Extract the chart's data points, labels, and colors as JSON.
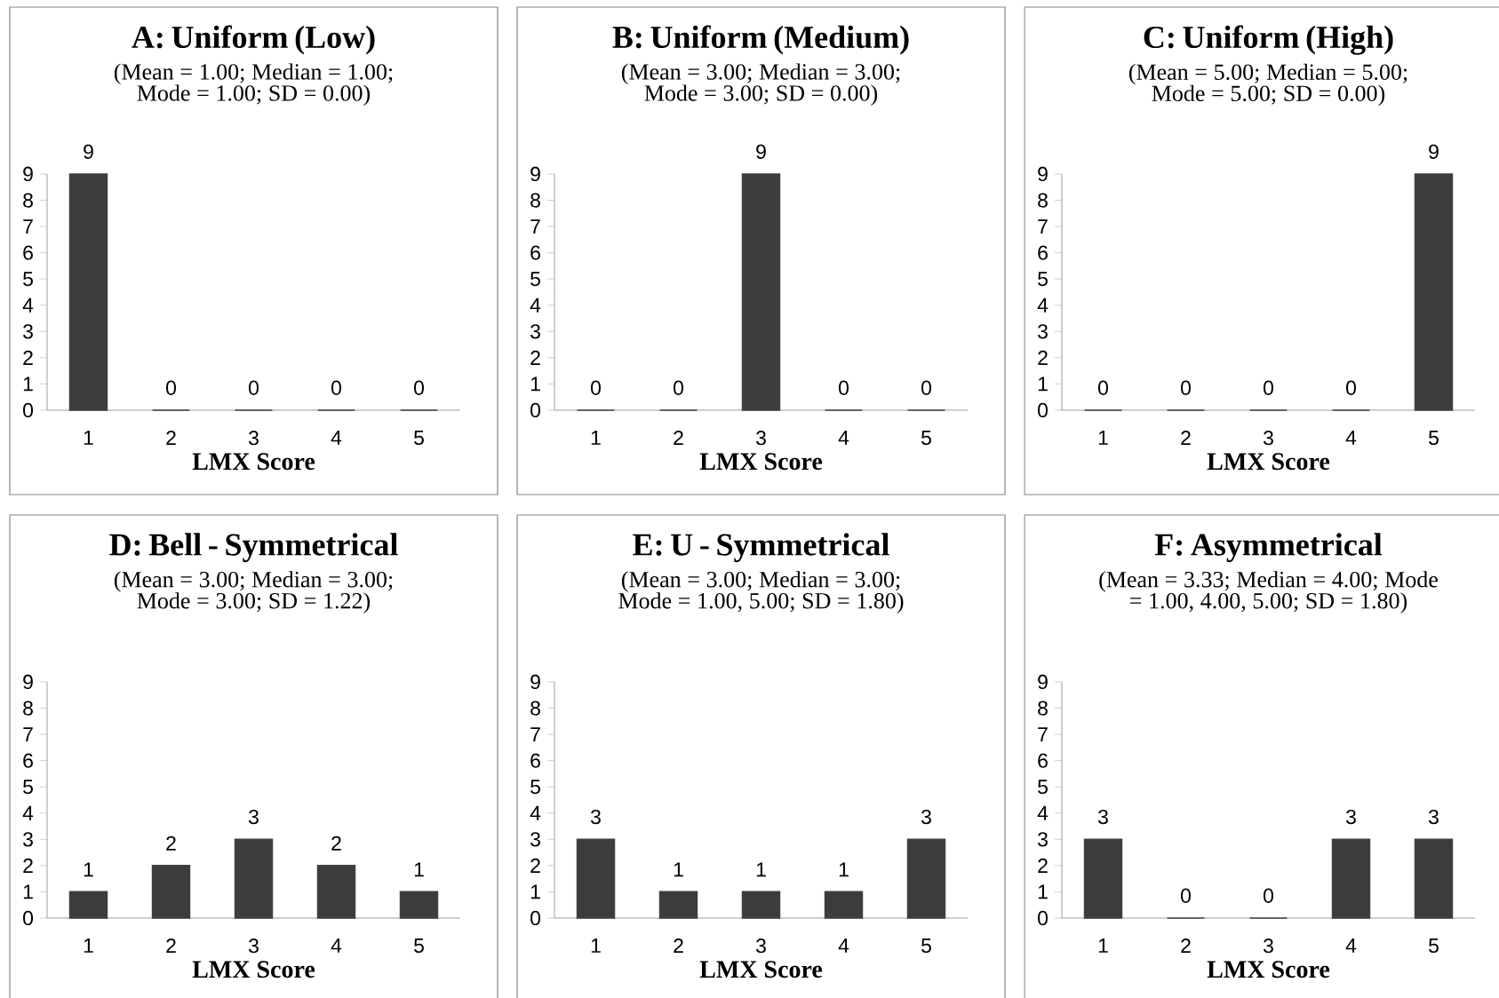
{
  "chart_data": [
    {
      "type": "bar",
      "title": "A: Uniform (Low)",
      "subtitle": "(Mean = 1.00; Median = 1.00; Mode = 1.00; SD = 0.00)",
      "xlabel": "LMX Score",
      "categories": [
        "1",
        "2",
        "3",
        "4",
        "5"
      ],
      "values": [
        9,
        0,
        0,
        0,
        0
      ],
      "color": "#3c3c3c",
      "ylim": [
        0,
        9
      ],
      "yticks": [
        0,
        1,
        2,
        3,
        4,
        5,
        6,
        7,
        8,
        9
      ],
      "data_labels": true
    },
    {
      "type": "bar",
      "title": "B: Uniform (Medium)",
      "subtitle": "(Mean = 3.00; Median = 3.00; Mode = 3.00; SD = 0.00)",
      "xlabel": "LMX Score",
      "categories": [
        "1",
        "2",
        "3",
        "4",
        "5"
      ],
      "values": [
        0,
        0,
        9,
        0,
        0
      ],
      "color": "#3c3c3c",
      "ylim": [
        0,
        9
      ],
      "yticks": [
        0,
        1,
        2,
        3,
        4,
        5,
        6,
        7,
        8,
        9
      ],
      "data_labels": true
    },
    {
      "type": "bar",
      "title": "C: Uniform (High)",
      "subtitle": "(Mean = 5.00; Median = 5.00; Mode = 5.00; SD = 0.00)",
      "xlabel": "LMX Score",
      "categories": [
        "1",
        "2",
        "3",
        "4",
        "5"
      ],
      "values": [
        0,
        0,
        0,
        0,
        9
      ],
      "color": "#3c3c3c",
      "ylim": [
        0,
        9
      ],
      "yticks": [
        0,
        1,
        2,
        3,
        4,
        5,
        6,
        7,
        8,
        9
      ],
      "data_labels": true
    },
    {
      "type": "bar",
      "title": "D: Bell - Symmetrical",
      "subtitle": "(Mean = 3.00; Median = 3.00; Mode = 3.00; SD = 1.22)",
      "xlabel": "LMX Score",
      "categories": [
        "1",
        "2",
        "3",
        "4",
        "5"
      ],
      "values": [
        1,
        2,
        3,
        2,
        1
      ],
      "color": "#3c3c3c",
      "ylim": [
        0,
        9
      ],
      "yticks": [
        0,
        1,
        2,
        3,
        4,
        5,
        6,
        7,
        8,
        9
      ],
      "data_labels": true
    },
    {
      "type": "bar",
      "title": "E: U - Symmetrical",
      "subtitle": "(Mean = 3.00; Median = 3.00; Mode = 1.00, 5.00; SD = 1.80)",
      "xlabel": "LMX Score",
      "categories": [
        "1",
        "2",
        "3",
        "4",
        "5"
      ],
      "values": [
        3,
        1,
        1,
        1,
        3
      ],
      "color": "#3c3c3c",
      "ylim": [
        0,
        9
      ],
      "yticks": [
        0,
        1,
        2,
        3,
        4,
        5,
        6,
        7,
        8,
        9
      ],
      "data_labels": true
    },
    {
      "type": "bar",
      "title": "F: Asymmetrical",
      "subtitle": "(Mean = 3.33; Median = 4.00; Mode = 1.00, 4.00, 5.00; SD = 1.80)",
      "xlabel": "LMX Score",
      "categories": [
        "1",
        "2",
        "3",
        "4",
        "5"
      ],
      "values": [
        3,
        0,
        0,
        3,
        3
      ],
      "color": "#3c3c3c",
      "ylim": [
        0,
        9
      ],
      "yticks": [
        0,
        1,
        2,
        3,
        4,
        5,
        6,
        7,
        8,
        9
      ],
      "data_labels": true
    }
  ]
}
